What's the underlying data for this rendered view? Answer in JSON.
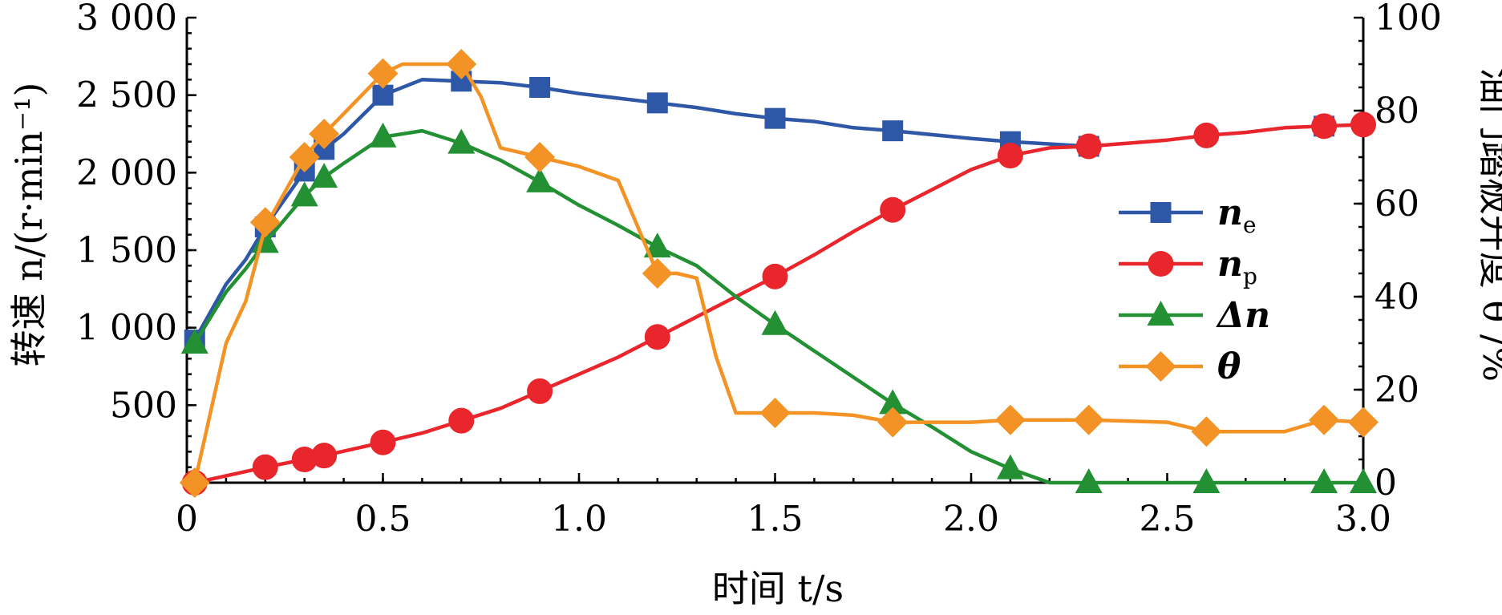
{
  "chart_data": {
    "type": "line",
    "xlabel": "时间 t/s",
    "ylabel_left": "转速 n/(r·min⁻¹)",
    "ylabel_right": "油门踏板开度 θ /%",
    "xlim": [
      0,
      3.0
    ],
    "ylim_left": [
      0,
      3000
    ],
    "ylim_right": [
      0,
      100
    ],
    "x_ticks": [
      "0",
      "0.5",
      "1.0",
      "1.5",
      "2.0",
      "2.5",
      "3.0"
    ],
    "y_left_ticks": [
      "500",
      "1 000",
      "1 500",
      "2 000",
      "2 500",
      "3 000"
    ],
    "y_right_ticks": [
      "0",
      "20",
      "40",
      "60",
      "80",
      "100"
    ],
    "grid": false,
    "legend_position": "right-center",
    "series": [
      {
        "name": "n_e",
        "label_main": "n",
        "label_sub": "e",
        "axis": "left",
        "color": "#2e57a8",
        "marker": "square",
        "line": [
          [
            0.02,
            920
          ],
          [
            0.1,
            1280
          ],
          [
            0.15,
            1440
          ],
          [
            0.2,
            1650
          ],
          [
            0.3,
            2010
          ],
          [
            0.35,
            2150
          ],
          [
            0.4,
            2250
          ],
          [
            0.5,
            2500
          ],
          [
            0.6,
            2600
          ],
          [
            0.7,
            2590
          ],
          [
            0.8,
            2580
          ],
          [
            0.9,
            2550
          ],
          [
            1.0,
            2510
          ],
          [
            1.1,
            2480
          ],
          [
            1.2,
            2450
          ],
          [
            1.3,
            2420
          ],
          [
            1.4,
            2380
          ],
          [
            1.5,
            2350
          ],
          [
            1.6,
            2330
          ],
          [
            1.7,
            2290
          ],
          [
            1.8,
            2270
          ],
          [
            2.0,
            2220
          ],
          [
            2.1,
            2200
          ],
          [
            2.3,
            2170
          ]
        ],
        "markers": [
          [
            0.02,
            920
          ],
          [
            0.2,
            1650
          ],
          [
            0.3,
            2010
          ],
          [
            0.35,
            2150
          ],
          [
            0.5,
            2500
          ],
          [
            0.7,
            2590
          ],
          [
            0.9,
            2550
          ],
          [
            1.2,
            2450
          ],
          [
            1.5,
            2350
          ],
          [
            1.8,
            2270
          ],
          [
            2.1,
            2200
          ],
          [
            2.3,
            2170
          ],
          [
            2.9,
            2300
          ]
        ]
      },
      {
        "name": "n_p",
        "label_main": "n",
        "label_sub": "p",
        "axis": "left",
        "color": "#e8262c",
        "marker": "circle",
        "line": [
          [
            0.02,
            0
          ],
          [
            0.2,
            100
          ],
          [
            0.3,
            150
          ],
          [
            0.35,
            175
          ],
          [
            0.5,
            260
          ],
          [
            0.6,
            320
          ],
          [
            0.7,
            400
          ],
          [
            0.8,
            480
          ],
          [
            0.9,
            590
          ],
          [
            1.0,
            700
          ],
          [
            1.1,
            810
          ],
          [
            1.2,
            940
          ],
          [
            1.3,
            1070
          ],
          [
            1.4,
            1200
          ],
          [
            1.5,
            1330
          ],
          [
            1.6,
            1470
          ],
          [
            1.7,
            1620
          ],
          [
            1.8,
            1760
          ],
          [
            1.9,
            1890
          ],
          [
            2.0,
            2020
          ],
          [
            2.1,
            2110
          ],
          [
            2.2,
            2160
          ],
          [
            2.3,
            2170
          ],
          [
            2.4,
            2190
          ],
          [
            2.5,
            2210
          ],
          [
            2.6,
            2240
          ],
          [
            2.7,
            2260
          ],
          [
            2.8,
            2290
          ],
          [
            2.9,
            2300
          ],
          [
            3.0,
            2310
          ]
        ],
        "markers": [
          [
            0.02,
            0
          ],
          [
            0.2,
            100
          ],
          [
            0.3,
            150
          ],
          [
            0.35,
            175
          ],
          [
            0.5,
            260
          ],
          [
            0.7,
            400
          ],
          [
            0.9,
            590
          ],
          [
            1.2,
            940
          ],
          [
            1.5,
            1330
          ],
          [
            1.8,
            1760
          ],
          [
            2.1,
            2110
          ],
          [
            2.3,
            2170
          ],
          [
            2.6,
            2240
          ],
          [
            2.9,
            2300
          ],
          [
            3.0,
            2310
          ]
        ]
      },
      {
        "name": "Δn",
        "label_main": "Δn",
        "label_sub": "",
        "axis": "left",
        "color": "#239034",
        "marker": "triangle",
        "line": [
          [
            0.02,
            900
          ],
          [
            0.1,
            1230
          ],
          [
            0.15,
            1380
          ],
          [
            0.2,
            1550
          ],
          [
            0.3,
            1850
          ],
          [
            0.35,
            1970
          ],
          [
            0.4,
            2060
          ],
          [
            0.5,
            2230
          ],
          [
            0.6,
            2270
          ],
          [
            0.7,
            2190
          ],
          [
            0.8,
            2080
          ],
          [
            0.9,
            1940
          ],
          [
            1.0,
            1790
          ],
          [
            1.1,
            1660
          ],
          [
            1.2,
            1520
          ],
          [
            1.3,
            1400
          ],
          [
            1.4,
            1200
          ],
          [
            1.5,
            1020
          ],
          [
            1.6,
            850
          ],
          [
            1.7,
            680
          ],
          [
            1.8,
            510
          ],
          [
            1.9,
            360
          ],
          [
            2.0,
            200
          ],
          [
            2.1,
            90
          ],
          [
            2.2,
            0
          ],
          [
            3.0,
            0
          ]
        ],
        "markers": [
          [
            0.02,
            900
          ],
          [
            0.2,
            1550
          ],
          [
            0.3,
            1850
          ],
          [
            0.35,
            1970
          ],
          [
            0.5,
            2230
          ],
          [
            0.7,
            2190
          ],
          [
            0.9,
            1940
          ],
          [
            1.2,
            1520
          ],
          [
            1.5,
            1020
          ],
          [
            1.8,
            510
          ],
          [
            2.1,
            90
          ],
          [
            2.3,
            0
          ],
          [
            2.6,
            0
          ],
          [
            2.9,
            0
          ],
          [
            3.0,
            0
          ]
        ]
      },
      {
        "name": "θ",
        "label_main": "θ",
        "label_sub": "",
        "axis": "right",
        "color": "#f39325",
        "marker": "diamond",
        "line": [
          [
            0.02,
            0
          ],
          [
            0.1,
            30
          ],
          [
            0.15,
            39
          ],
          [
            0.2,
            55
          ],
          [
            0.3,
            70
          ],
          [
            0.35,
            75
          ],
          [
            0.5,
            88
          ],
          [
            0.55,
            90
          ],
          [
            0.7,
            90
          ],
          [
            0.75,
            83
          ],
          [
            0.8,
            72
          ],
          [
            0.9,
            70
          ],
          [
            1.0,
            68
          ],
          [
            1.1,
            65
          ],
          [
            1.2,
            45
          ],
          [
            1.25,
            45
          ],
          [
            1.3,
            44
          ],
          [
            1.35,
            27
          ],
          [
            1.4,
            15
          ],
          [
            1.5,
            15
          ],
          [
            1.6,
            15
          ],
          [
            1.7,
            14.5
          ],
          [
            1.8,
            13
          ],
          [
            2.0,
            13
          ],
          [
            2.1,
            13.5
          ],
          [
            2.3,
            13.5
          ],
          [
            2.5,
            13
          ],
          [
            2.6,
            11
          ],
          [
            2.8,
            11
          ],
          [
            2.9,
            13.5
          ],
          [
            3.0,
            13
          ]
        ],
        "markers": [
          [
            0.02,
            0
          ],
          [
            0.2,
            56
          ],
          [
            0.3,
            70
          ],
          [
            0.35,
            75
          ],
          [
            0.5,
            88
          ],
          [
            0.7,
            90
          ],
          [
            0.9,
            70
          ],
          [
            1.2,
            45
          ],
          [
            1.5,
            15
          ],
          [
            1.8,
            13
          ],
          [
            2.1,
            13.5
          ],
          [
            2.3,
            13.5
          ],
          [
            2.6,
            11
          ],
          [
            2.9,
            13.5
          ],
          [
            3.0,
            13
          ]
        ]
      }
    ]
  }
}
